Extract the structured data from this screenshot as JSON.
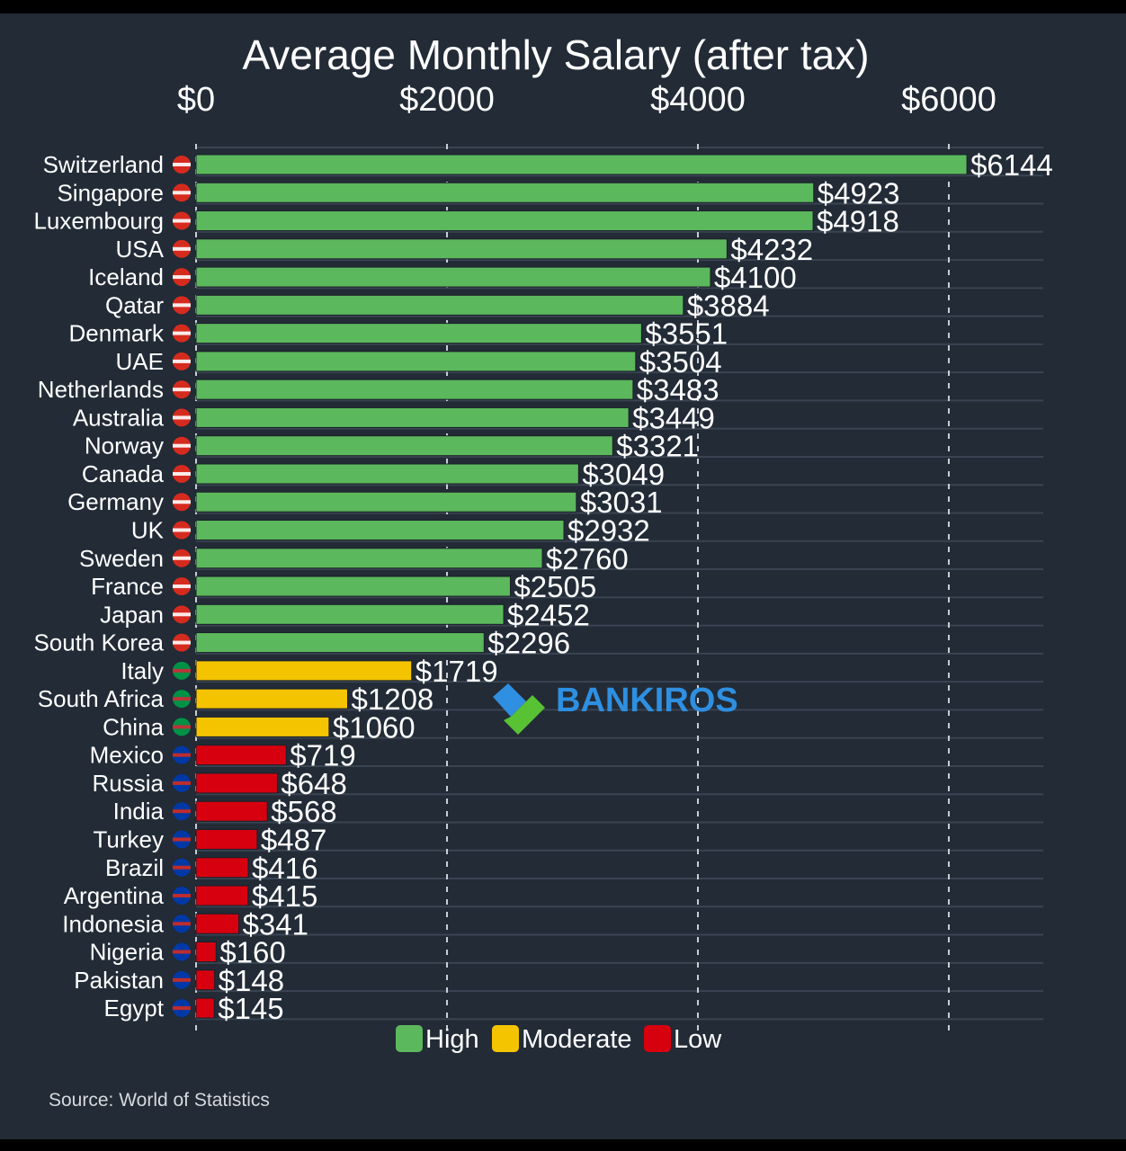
{
  "chart_data": {
    "type": "bar",
    "orientation": "horizontal",
    "title": "Average Monthly Salary (after tax)",
    "xlabel": "",
    "ylabel": "",
    "xlim": [
      0,
      6500
    ],
    "x_ticks": [
      0,
      2000,
      4000,
      6000
    ],
    "x_tick_labels": [
      "$0",
      "$2000",
      "$4000",
      "$6000"
    ],
    "x_axis_position": "top",
    "grid": true,
    "legend_position": "bottom-center",
    "value_prefix": "$",
    "categories": [
      "Switzerland",
      "Singapore",
      "Luxembourg",
      "USA",
      "Iceland",
      "Qatar",
      "Denmark",
      "UAE",
      "Netherlands",
      "Australia",
      "Norway",
      "Canada",
      "Germany",
      "UK",
      "Sweden",
      "France",
      "Japan",
      "South Korea",
      "Italy",
      "South Africa",
      "China",
      "Mexico",
      "Russia",
      "India",
      "Turkey",
      "Brazil",
      "Argentina",
      "Indonesia",
      "Nigeria",
      "Pakistan",
      "Egypt"
    ],
    "values": [
      6144,
      4923,
      4918,
      4232,
      4100,
      3884,
      3551,
      3504,
      3483,
      3449,
      3321,
      3049,
      3031,
      2932,
      2760,
      2505,
      2452,
      2296,
      1719,
      1208,
      1060,
      719,
      648,
      568,
      487,
      416,
      415,
      341,
      160,
      148,
      145
    ],
    "groups": [
      "High",
      "High",
      "High",
      "High",
      "High",
      "High",
      "High",
      "High",
      "High",
      "High",
      "High",
      "High",
      "High",
      "High",
      "High",
      "High",
      "High",
      "High",
      "Moderate",
      "Moderate",
      "Moderate",
      "Low",
      "Low",
      "Low",
      "Low",
      "Low",
      "Low",
      "Low",
      "Low",
      "Low",
      "Low"
    ],
    "legend": [
      {
        "name": "High",
        "color": "#5cb85c"
      },
      {
        "name": "Moderate",
        "color": "#f5c400"
      },
      {
        "name": "Low",
        "color": "#d7000f"
      }
    ],
    "flag_icons": [
      "switzerland-flag-icon",
      "singapore-flag-icon",
      "luxembourg-flag-icon",
      "usa-flag-icon",
      "iceland-flag-icon",
      "qatar-flag-icon",
      "denmark-flag-icon",
      "uae-flag-icon",
      "netherlands-flag-icon",
      "australia-flag-icon",
      "norway-flag-icon",
      "canada-flag-icon",
      "germany-flag-icon",
      "uk-flag-icon",
      "sweden-flag-icon",
      "france-flag-icon",
      "japan-flag-icon",
      "south-korea-flag-icon",
      "italy-flag-icon",
      "south-africa-flag-icon",
      "china-flag-icon",
      "mexico-flag-icon",
      "russia-flag-icon",
      "india-flag-icon",
      "turkey-flag-icon",
      "brazil-flag-icon",
      "argentina-flag-icon",
      "indonesia-flag-icon",
      "nigeria-flag-icon",
      "pakistan-flag-icon",
      "egypt-flag-icon"
    ],
    "source": "Source: World of Statistics",
    "watermark": "BANKIROS"
  },
  "colors": {
    "background": "#222b36",
    "gridline": "#3a4452",
    "text": "#ffffff",
    "watermark_blue": "#2f8fe0",
    "watermark_green": "#58c234"
  }
}
